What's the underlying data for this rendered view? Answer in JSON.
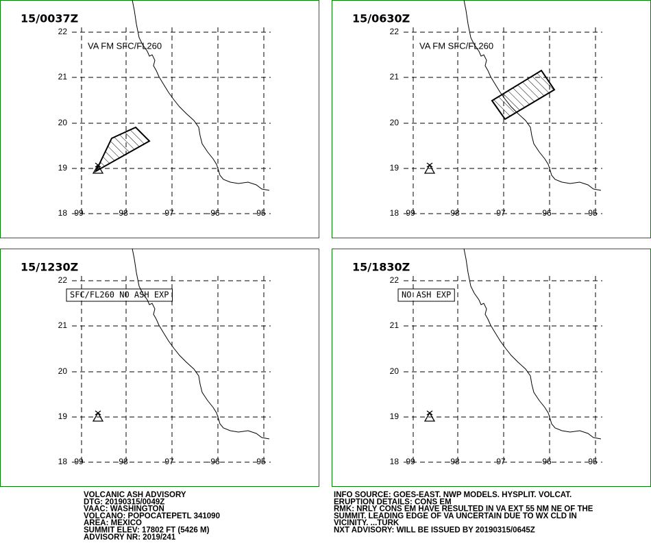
{
  "panels": [
    {
      "time": "15/0037Z",
      "label": "VA FM SFC/FL260"
    },
    {
      "time": "15/0630Z",
      "label": "VA FM SFC/FL260"
    },
    {
      "time": "15/1230Z",
      "box_label": "SFC/FL260 NO ASH EXP"
    },
    {
      "time": "15/1830Z",
      "box_label": "NO ASH EXP"
    }
  ],
  "lat_labels": [
    "22",
    "21",
    "20",
    "19",
    "18"
  ],
  "lon_labels": [
    "-99",
    "-98",
    "-97",
    "-96",
    "-95"
  ],
  "advisory_left": [
    "VOLCANIC ASH ADVISORY",
    "DTG: 20190315/0049Z",
    "VAAC: WASHINGTON",
    "VOLCANO: POPOCATEPETL 341090",
    "AREA: MEXICO",
    "SUMMIT ELEV: 17802 FT (5426 M)",
    "ADVISORY NR: 2019/241"
  ],
  "advisory_right": [
    "INFO SOURCE: GOES-EAST. NWP MODELS. HYSPLIT. VOLCAT.",
    "ERUPTION DETAILS: CONS EM",
    "RMK: NRLY CONS EM HAVE RESULTED IN VA EXT 55 NM NE OF THE",
    "SUMMIT. LEADING EDGE OF VA UNCERTAIN DUE TO WX CLD IN",
    "VICINITY. ...TURK",
    "NXT ADVISORY: WILL BE ISSUED BY 20190315/0645Z"
  ]
}
